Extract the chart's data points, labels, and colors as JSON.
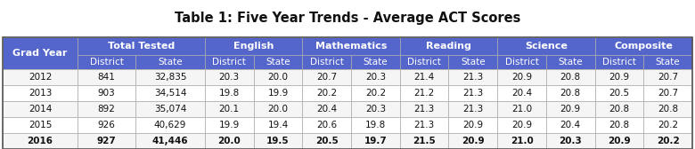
{
  "title": "Table 1: Five Year Trends - Average ACT Scores",
  "header_groups": [
    "Total Tested",
    "English",
    "Mathematics",
    "Reading",
    "Science",
    "Composite"
  ],
  "sub_headers": [
    "District",
    "State"
  ],
  "row_label": "Grad Year",
  "years": [
    "2012",
    "2013",
    "2014",
    "2015",
    "2016"
  ],
  "data": {
    "Total Tested": {
      "District": [
        "841",
        "903",
        "892",
        "926",
        "927"
      ],
      "State": [
        "32,835",
        "34,514",
        "35,074",
        "40,629",
        "41,446"
      ]
    },
    "English": {
      "District": [
        "20.3",
        "19.8",
        "20.1",
        "19.9",
        "20.0"
      ],
      "State": [
        "20.0",
        "19.9",
        "20.0",
        "19.4",
        "19.5"
      ]
    },
    "Mathematics": {
      "District": [
        "20.7",
        "20.2",
        "20.4",
        "20.6",
        "20.5"
      ],
      "State": [
        "20.3",
        "20.2",
        "20.3",
        "19.8",
        "19.7"
      ]
    },
    "Reading": {
      "District": [
        "21.4",
        "21.2",
        "21.3",
        "21.3",
        "21.5"
      ],
      "State": [
        "21.3",
        "21.3",
        "21.3",
        "20.9",
        "20.9"
      ]
    },
    "Science": {
      "District": [
        "20.9",
        "20.4",
        "21.0",
        "20.9",
        "21.0"
      ],
      "State": [
        "20.8",
        "20.8",
        "20.9",
        "20.4",
        "20.3"
      ]
    },
    "Composite": {
      "District": [
        "20.9",
        "20.5",
        "20.8",
        "20.8",
        "20.9"
      ],
      "State": [
        "20.7",
        "20.7",
        "20.8",
        "20.2",
        "20.2"
      ]
    }
  },
  "header_bg": "#5466cc",
  "header_fg": "#ffffff",
  "row_bg_even": "#f5f5f5",
  "row_bg_odd": "#ffffff",
  "title_fontsize": 10.5,
  "header_fontsize": 8.0,
  "subheader_fontsize": 7.5,
  "data_fontsize": 7.5,
  "border_color": "#aaaaaa",
  "outer_border_color": "#555555"
}
